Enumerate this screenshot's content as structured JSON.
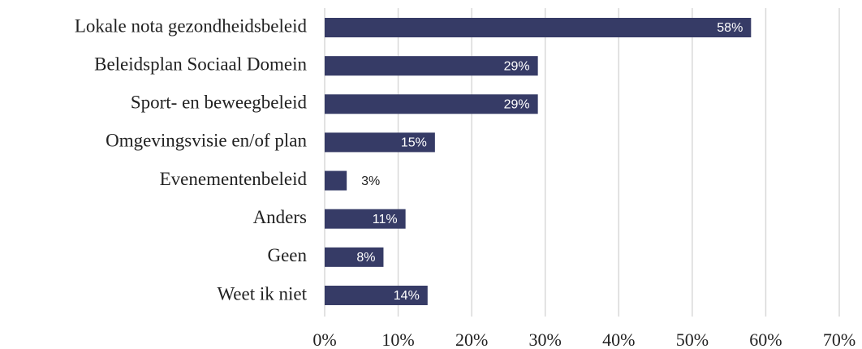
{
  "chart_data": {
    "type": "barh",
    "categories": [
      "Lokale nota gezondheidsbeleid",
      "Beleidsplan Sociaal Domein",
      "Sport- en beweegbeleid",
      "Omgevingsvisie en/of plan",
      "Evenementenbeleid",
      "Anders",
      "Geen",
      "Weet ik niet"
    ],
    "values": [
      58,
      29,
      29,
      15,
      3,
      11,
      8,
      14
    ],
    "value_labels": [
      "58%",
      "29%",
      "29%",
      "15%",
      "3%",
      "11%",
      "8%",
      "14%"
    ],
    "color": "#363b66",
    "xlim": [
      0,
      70
    ],
    "xticks": [
      {
        "value": 0,
        "label": "0%"
      },
      {
        "value": 10,
        "label": "10%"
      },
      {
        "value": 20,
        "label": "20%"
      },
      {
        "value": 30,
        "label": "30%"
      },
      {
        "value": 40,
        "label": "40%"
      },
      {
        "value": 50,
        "label": "50%"
      },
      {
        "value": 60,
        "label": "60%"
      },
      {
        "value": 70,
        "label": "70%"
      }
    ],
    "grid": true
  }
}
